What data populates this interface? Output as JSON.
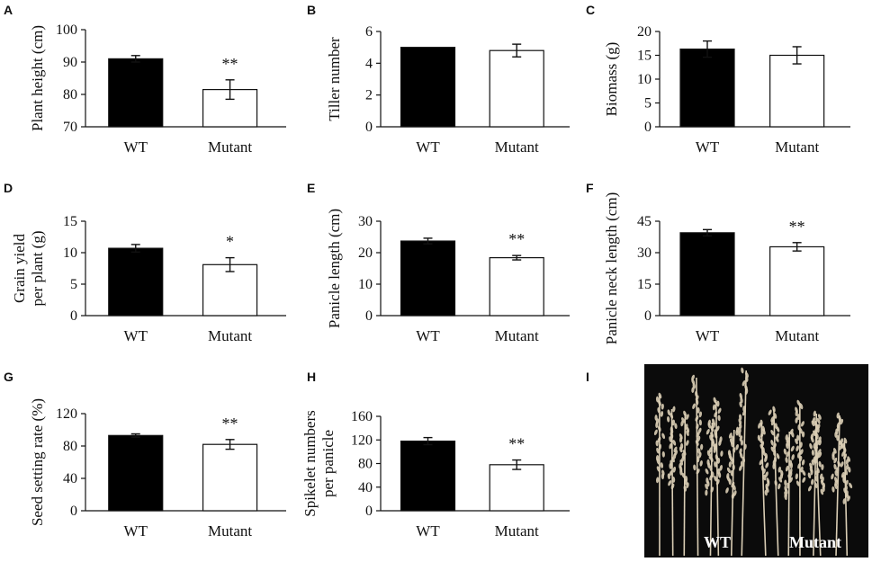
{
  "chart_data": [
    {
      "panel": "A",
      "type": "bar",
      "ylabel": "Plant height (cm)",
      "categories": [
        "WT",
        "Mutant"
      ],
      "values": [
        91,
        81.5
      ],
      "errors": [
        1,
        3
      ],
      "ylim": [
        70,
        100
      ],
      "yticks": [
        "70",
        "80",
        "90",
        "100"
      ],
      "significance": [
        "",
        "**"
      ],
      "bar_colors": [
        "#000000",
        "#ffffff"
      ]
    },
    {
      "panel": "B",
      "type": "bar",
      "ylabel": "Tiller number",
      "categories": [
        "WT",
        "Mutant"
      ],
      "values": [
        5,
        4.8
      ],
      "errors": [
        0,
        0.4
      ],
      "ylim": [
        0,
        6
      ],
      "yticks": [
        "0",
        "2",
        "4",
        "6"
      ],
      "significance": [
        "",
        ""
      ],
      "bar_colors": [
        "#000000",
        "#ffffff"
      ]
    },
    {
      "panel": "C",
      "type": "bar",
      "ylabel": "Biomass (g)",
      "categories": [
        "WT",
        "Mutant"
      ],
      "values": [
        16.3,
        15
      ],
      "errors": [
        1.7,
        1.8
      ],
      "ylim": [
        0,
        20
      ],
      "yticks": [
        "0",
        "5",
        "10",
        "15",
        "20"
      ],
      "significance": [
        "",
        ""
      ],
      "bar_colors": [
        "#000000",
        "#ffffff"
      ]
    },
    {
      "panel": "D",
      "type": "bar",
      "ylabel": [
        "Grain yield",
        "per plant (g)"
      ],
      "categories": [
        "WT",
        "Mutant"
      ],
      "values": [
        10.7,
        8.1
      ],
      "errors": [
        0.6,
        1.1
      ],
      "ylim": [
        0,
        15
      ],
      "yticks": [
        "0",
        "5",
        "10",
        "15"
      ],
      "significance": [
        "",
        "*"
      ],
      "bar_colors": [
        "#000000",
        "#ffffff"
      ]
    },
    {
      "panel": "E",
      "type": "bar",
      "ylabel": "Panicle length (cm)",
      "categories": [
        "WT",
        "Mutant"
      ],
      "values": [
        23.7,
        18.4
      ],
      "errors": [
        0.9,
        0.7
      ],
      "ylim": [
        0,
        30
      ],
      "yticks": [
        "0",
        "10",
        "20",
        "30"
      ],
      "significance": [
        "",
        "**"
      ],
      "bar_colors": [
        "#000000",
        "#ffffff"
      ]
    },
    {
      "panel": "F",
      "type": "bar",
      "ylabel": "Panicle neck length (cm)",
      "categories": [
        "WT",
        "Mutant"
      ],
      "values": [
        39.5,
        32.8
      ],
      "errors": [
        1.5,
        2.0
      ],
      "ylim": [
        0,
        45
      ],
      "yticks": [
        "0",
        "15",
        "30",
        "45"
      ],
      "significance": [
        "",
        "**"
      ],
      "bar_colors": [
        "#000000",
        "#ffffff"
      ]
    },
    {
      "panel": "G",
      "type": "bar",
      "ylabel": "Seed setting rate (%)",
      "categories": [
        "WT",
        "Mutant"
      ],
      "values": [
        93,
        82
      ],
      "errors": [
        2,
        6
      ],
      "ylim": [
        0,
        120
      ],
      "yticks": [
        "0",
        "40",
        "80",
        "120"
      ],
      "significance": [
        "",
        "**"
      ],
      "bar_colors": [
        "#000000",
        "#ffffff"
      ]
    },
    {
      "panel": "H",
      "type": "bar",
      "ylabel": [
        "Spikelet numbers",
        "per panicle"
      ],
      "categories": [
        "WT",
        "Mutant"
      ],
      "values": [
        118,
        78
      ],
      "errors": [
        6,
        8
      ],
      "ylim": [
        0,
        160
      ],
      "yticks": [
        "0",
        "40",
        "80",
        "120",
        "160"
      ],
      "significance": [
        "",
        "**"
      ],
      "bar_colors": [
        "#000000",
        "#ffffff"
      ]
    }
  ],
  "photo": {
    "panel": "I",
    "labels": [
      "WT",
      "Mutant"
    ],
    "background": "#0b0b0b",
    "panicle_color": "#d9cdb4"
  }
}
